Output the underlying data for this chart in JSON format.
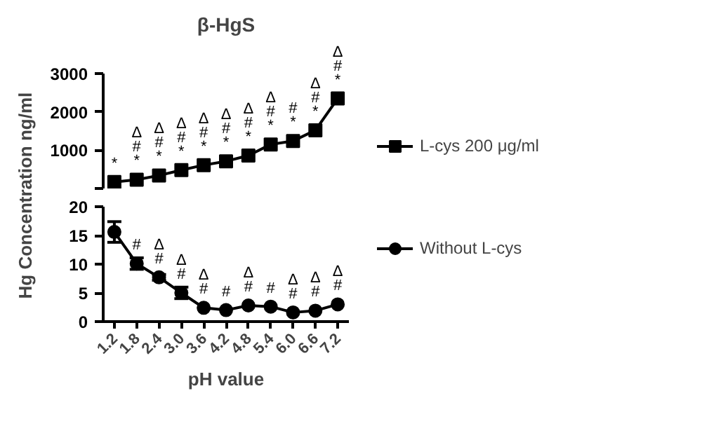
{
  "chart_data": [
    {
      "type": "line",
      "title": "β-HgS",
      "ylabel": "Hg Concentration ng/ml",
      "categories": [
        "1.2",
        "1.8",
        "2.4",
        "3.0",
        "3.6",
        "4.2",
        "4.8",
        "5.4",
        "6.0",
        "6.6",
        "7.2"
      ],
      "series": [
        {
          "name": "L-cys 200 μg/ml",
          "color": "#000000",
          "marker": "square",
          "values": [
            170,
            230,
            340,
            480,
            610,
            710,
            860,
            1150,
            1240,
            1520,
            2350
          ]
        }
      ],
      "ylim": [
        0,
        3000
      ],
      "yticks": [
        {
          "value": 0,
          "label": null
        },
        1000,
        2000,
        3000
      ],
      "tick_labels": "y",
      "grid": false,
      "legend": "right",
      "line_style": "solid",
      "annotations": [
        {
          "text": "*",
          "x": "1.2",
          "y": 170
        },
        {
          "text": "Δ\n#\n*",
          "x": "1.8",
          "y": 230
        },
        {
          "text": "Δ\n#\n*",
          "x": "2.4",
          "y": 340
        },
        {
          "text": "Δ\n#\n*",
          "x": "3.0",
          "y": 480
        },
        {
          "text": "Δ\n#\n*",
          "x": "3.6",
          "y": 610
        },
        {
          "text": "Δ\n#\n*",
          "x": "4.2",
          "y": 710
        },
        {
          "text": "Δ\n#\n*",
          "x": "4.8",
          "y": 860
        },
        {
          "text": "Δ\n#\n*",
          "x": "5.4",
          "y": 1150
        },
        {
          "text": "#\n*",
          "x": "6.0",
          "y": 1240
        },
        {
          "text": "Δ\n#\n*",
          "x": "6.6",
          "y": 1520
        },
        {
          "text": "Δ\n#\n*",
          "x": "7.2",
          "y": 2350
        }
      ]
    },
    {
      "type": "line",
      "xlabel": "pH value",
      "categories": [
        "1.2",
        "1.8",
        "2.4",
        "3.0",
        "3.6",
        "4.2",
        "4.8",
        "5.4",
        "6.0",
        "6.6",
        "7.2"
      ],
      "series": [
        {
          "name": "Without L-cys",
          "color": "#000000",
          "marker": "circle",
          "values": [
            15.6,
            10.1,
            7.7,
            5.0,
            2.4,
            2.0,
            2.8,
            2.6,
            1.6,
            1.9,
            3.0
          ],
          "errors": [
            1.8,
            1.0,
            0.5,
            1.0,
            null,
            null,
            null,
            null,
            null,
            null,
            null
          ]
        }
      ],
      "ylim": [
        0,
        20
      ],
      "yticks": [
        0,
        5,
        10,
        15,
        20
      ],
      "grid": false,
      "legend": "right",
      "line_style": "solid",
      "annotations": [
        {
          "text": "#",
          "x": "1.8",
          "y": 10.1
        },
        {
          "text": "Δ\n#",
          "x": "2.4",
          "y": 7.7
        },
        {
          "text": "Δ\n#",
          "x": "3.0",
          "y": 5.0
        },
        {
          "text": "Δ\n#",
          "x": "3.6",
          "y": 2.4
        },
        {
          "text": "#",
          "x": "4.2",
          "y": 2.0
        },
        {
          "text": "Δ\n#",
          "x": "4.8",
          "y": 2.8
        },
        {
          "text": "#",
          "x": "5.4",
          "y": 2.6
        },
        {
          "text": "Δ\n#",
          "x": "6.0",
          "y": 1.6
        },
        {
          "text": "Δ\n#",
          "x": "6.6",
          "y": 1.9
        },
        {
          "text": "Δ\n#",
          "x": "7.2",
          "y": 3.0
        }
      ]
    }
  ]
}
